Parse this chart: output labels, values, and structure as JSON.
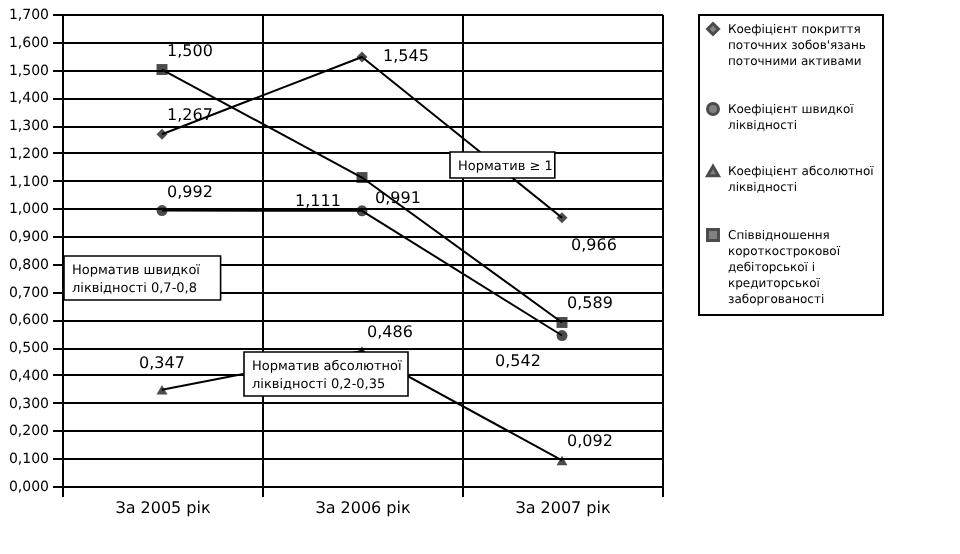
{
  "chart_data": {
    "type": "line",
    "categories": [
      "За 2005 рік",
      "За 2006 рік",
      "За 2007 рік"
    ],
    "series": [
      {
        "name": "Коефіцієнт покриття поточних зобов'язань поточними активами",
        "color": "#000000",
        "marker": "diamond",
        "values": [
          1.267,
          1.545,
          0.966
        ],
        "value_labels": [
          "1,267",
          "1,545",
          "0,966"
        ]
      },
      {
        "name": "Коефіцієнт швидкої ліквідності",
        "color": "#000000",
        "marker": "circle",
        "values": [
          0.992,
          0.991,
          0.542
        ],
        "value_labels": [
          "0,992",
          "0,991",
          "0,542"
        ]
      },
      {
        "name": "Коефіцієнт абсолютної ліквідності",
        "color": "#000000",
        "marker": "triangle",
        "values": [
          0.347,
          0.486,
          0.092
        ],
        "value_labels": [
          "0,347",
          "0,486",
          "0,092"
        ]
      },
      {
        "name": "Співвідношення короткострокової дебіторської і кредиторської заборгованості",
        "color": "#000000",
        "marker": "square",
        "values": [
          1.5,
          1.111,
          0.589
        ],
        "value_labels": [
          "1,500",
          "1,111",
          "0,589"
        ]
      }
    ],
    "ylim": [
      0,
      1.7
    ],
    "yticks": [
      {
        "value": 0,
        "label": "0,000"
      },
      {
        "value": 0.1,
        "label": "0,100"
      },
      {
        "value": 0.2,
        "label": "0,200"
      },
      {
        "value": 0.3,
        "label": "0,300"
      },
      {
        "value": 0.4,
        "label": "0,400"
      },
      {
        "value": 0.5,
        "label": "0,500"
      },
      {
        "value": 0.6,
        "label": "0,600"
      },
      {
        "value": 0.7,
        "label": "0,700"
      },
      {
        "value": 0.8,
        "label": "0,800"
      },
      {
        "value": 0.9,
        "label": "0,900"
      },
      {
        "value": 1.0,
        "label": "1,000"
      },
      {
        "value": 1.1,
        "label": "1,100"
      },
      {
        "value": 1.2,
        "label": "1,200"
      },
      {
        "value": 1.3,
        "label": "1,300"
      },
      {
        "value": 1.4,
        "label": "1,400"
      },
      {
        "value": 1.5,
        "label": "1,500"
      },
      {
        "value": 1.6,
        "label": "1,600"
      },
      {
        "value": 1.7,
        "label": "1,700"
      }
    ],
    "annotations": [
      "Норматив ≥ 1",
      "Норматив швидкої ліквідності 0,7-0,8",
      "Норматив абсолютної ліквідності 0,2-0,35"
    ],
    "grid": true,
    "legend": "right",
    "line_style": "solid"
  }
}
